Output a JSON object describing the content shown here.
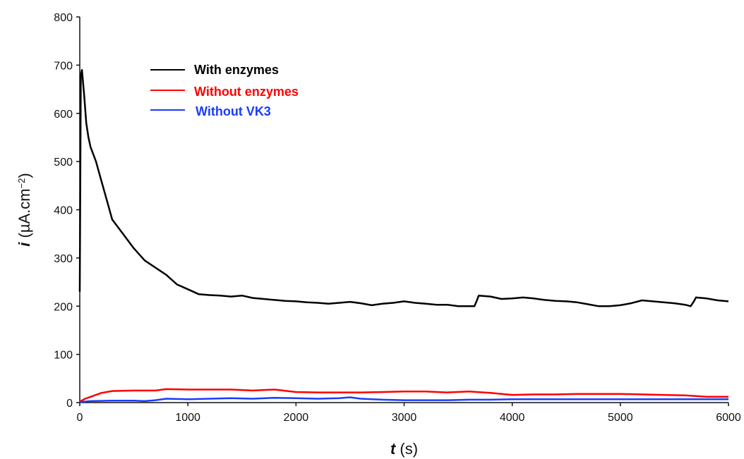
{
  "chart_data": {
    "type": "line",
    "xlabel": {
      "var": "t",
      "unit": " (s)"
    },
    "ylabel": {
      "var": "i",
      "unit_pre": " (µA.cm",
      "unit_sup": "−2",
      "unit_post": ")"
    },
    "xlim": [
      0,
      6000
    ],
    "ylim": [
      0,
      800
    ],
    "x_ticks": [
      0,
      1000,
      2000,
      3000,
      4000,
      5000,
      6000
    ],
    "y_ticks": [
      0,
      100,
      200,
      300,
      400,
      500,
      600,
      700,
      800
    ],
    "grid": false,
    "legend_position": "top-left",
    "series": [
      {
        "name": "With enzymes",
        "color": "#000000",
        "points": [
          [
            0,
            230
          ],
          [
            10,
            680
          ],
          [
            20,
            690
          ],
          [
            40,
            640
          ],
          [
            60,
            580
          ],
          [
            80,
            550
          ],
          [
            100,
            530
          ],
          [
            150,
            500
          ],
          [
            200,
            460
          ],
          [
            250,
            420
          ],
          [
            300,
            380
          ],
          [
            400,
            350
          ],
          [
            500,
            320
          ],
          [
            600,
            295
          ],
          [
            700,
            280
          ],
          [
            800,
            265
          ],
          [
            900,
            245
          ],
          [
            1000,
            235
          ],
          [
            1100,
            225
          ],
          [
            1200,
            223
          ],
          [
            1300,
            222
          ],
          [
            1400,
            220
          ],
          [
            1500,
            222
          ],
          [
            1600,
            217
          ],
          [
            1700,
            215
          ],
          [
            1800,
            213
          ],
          [
            1900,
            211
          ],
          [
            2000,
            210
          ],
          [
            2100,
            208
          ],
          [
            2200,
            207
          ],
          [
            2300,
            205
          ],
          [
            2400,
            207
          ],
          [
            2500,
            209
          ],
          [
            2600,
            206
          ],
          [
            2700,
            202
          ],
          [
            2800,
            205
          ],
          [
            2900,
            207
          ],
          [
            3000,
            210
          ],
          [
            3100,
            207
          ],
          [
            3200,
            205
          ],
          [
            3300,
            203
          ],
          [
            3400,
            203
          ],
          [
            3500,
            200
          ],
          [
            3600,
            200
          ],
          [
            3650,
            200
          ],
          [
            3670,
            210
          ],
          [
            3690,
            222
          ],
          [
            3800,
            220
          ],
          [
            3900,
            215
          ],
          [
            4000,
            216
          ],
          [
            4100,
            218
          ],
          [
            4200,
            216
          ],
          [
            4300,
            213
          ],
          [
            4400,
            211
          ],
          [
            4500,
            210
          ],
          [
            4600,
            208
          ],
          [
            4700,
            204
          ],
          [
            4800,
            200
          ],
          [
            4900,
            200
          ],
          [
            5000,
            202
          ],
          [
            5100,
            206
          ],
          [
            5200,
            212
          ],
          [
            5300,
            210
          ],
          [
            5400,
            208
          ],
          [
            5500,
            206
          ],
          [
            5600,
            203
          ],
          [
            5650,
            200
          ],
          [
            5680,
            210
          ],
          [
            5700,
            218
          ],
          [
            5800,
            216
          ],
          [
            5900,
            212
          ],
          [
            6000,
            210
          ]
        ]
      },
      {
        "name": "Without enzymes",
        "color": "#ff0000",
        "points": [
          [
            0,
            2
          ],
          [
            50,
            8
          ],
          [
            100,
            12
          ],
          [
            200,
            20
          ],
          [
            300,
            24
          ],
          [
            500,
            25
          ],
          [
            700,
            25
          ],
          [
            800,
            28
          ],
          [
            1000,
            27
          ],
          [
            1200,
            27
          ],
          [
            1400,
            27
          ],
          [
            1600,
            25
          ],
          [
            1800,
            27
          ],
          [
            2000,
            22
          ],
          [
            2200,
            21
          ],
          [
            2400,
            21
          ],
          [
            2600,
            21
          ],
          [
            2800,
            22
          ],
          [
            3000,
            23
          ],
          [
            3200,
            23
          ],
          [
            3400,
            21
          ],
          [
            3600,
            23
          ],
          [
            3800,
            20
          ],
          [
            4000,
            16
          ],
          [
            4200,
            17
          ],
          [
            4400,
            17
          ],
          [
            4600,
            18
          ],
          [
            4800,
            18
          ],
          [
            5000,
            18
          ],
          [
            5200,
            17
          ],
          [
            5400,
            16
          ],
          [
            5600,
            15
          ],
          [
            5800,
            12
          ],
          [
            6000,
            12
          ]
        ]
      },
      {
        "name": "Without VK3",
        "color": "#1a3bff",
        "points": [
          [
            0,
            1
          ],
          [
            100,
            3
          ],
          [
            300,
            4
          ],
          [
            500,
            4
          ],
          [
            600,
            3
          ],
          [
            700,
            5
          ],
          [
            800,
            8
          ],
          [
            1000,
            7
          ],
          [
            1200,
            8
          ],
          [
            1400,
            9
          ],
          [
            1600,
            8
          ],
          [
            1800,
            10
          ],
          [
            2000,
            9
          ],
          [
            2200,
            8
          ],
          [
            2400,
            9
          ],
          [
            2500,
            11
          ],
          [
            2600,
            8
          ],
          [
            2800,
            6
          ],
          [
            3000,
            5
          ],
          [
            3200,
            5
          ],
          [
            3400,
            5
          ],
          [
            3600,
            6
          ],
          [
            3800,
            6
          ],
          [
            4000,
            7
          ],
          [
            4200,
            7
          ],
          [
            4400,
            7
          ],
          [
            4600,
            7
          ],
          [
            4800,
            7
          ],
          [
            5000,
            7
          ],
          [
            5200,
            7
          ],
          [
            5400,
            7
          ],
          [
            5600,
            7
          ],
          [
            5800,
            7
          ],
          [
            6000,
            7
          ]
        ]
      }
    ]
  }
}
